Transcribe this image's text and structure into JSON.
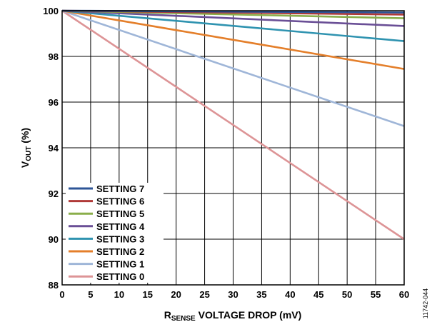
{
  "chart_data": {
    "type": "line",
    "xlabel_main": "R",
    "xlabel_sub": "SENSE",
    "xlabel_rest": " VOLTAGE DROP (mV)",
    "ylabel_main": "V",
    "ylabel_sub": "OUT",
    "ylabel_rest": " (%)",
    "xlim": [
      0,
      60
    ],
    "ylim": [
      88,
      100
    ],
    "x_ticks": [
      0,
      5,
      10,
      15,
      20,
      25,
      30,
      35,
      40,
      45,
      50,
      55,
      60
    ],
    "y_ticks": [
      88,
      90,
      92,
      94,
      96,
      98,
      100
    ],
    "grid": true,
    "legend_position": "bottom-left",
    "figure_id": "11742-044",
    "series": [
      {
        "name": "SETTING 7",
        "color": "#2e5597",
        "x": [
          0,
          60
        ],
        "y": [
          100,
          99.92
        ]
      },
      {
        "name": "SETTING 6",
        "color": "#b03a38",
        "x": [
          0,
          60
        ],
        "y": [
          100,
          99.83
        ]
      },
      {
        "name": "SETTING 5",
        "color": "#8aae4a",
        "x": [
          0,
          60
        ],
        "y": [
          100,
          99.67
        ]
      },
      {
        "name": "SETTING 4",
        "color": "#6a4f96",
        "x": [
          0,
          60
        ],
        "y": [
          100,
          99.33
        ]
      },
      {
        "name": "SETTING 3",
        "color": "#2f93b0",
        "x": [
          0,
          60
        ],
        "y": [
          100,
          98.67
        ]
      },
      {
        "name": "SETTING 2",
        "color": "#e47f2b",
        "x": [
          0,
          60
        ],
        "y": [
          100,
          97.45
        ]
      },
      {
        "name": "SETTING 1",
        "color": "#9fb6d8",
        "x": [
          0,
          60
        ],
        "y": [
          100,
          94.95
        ]
      },
      {
        "name": "SETTING 0",
        "color": "#dd9496",
        "x": [
          0,
          60
        ],
        "y": [
          100,
          90
        ]
      }
    ]
  }
}
